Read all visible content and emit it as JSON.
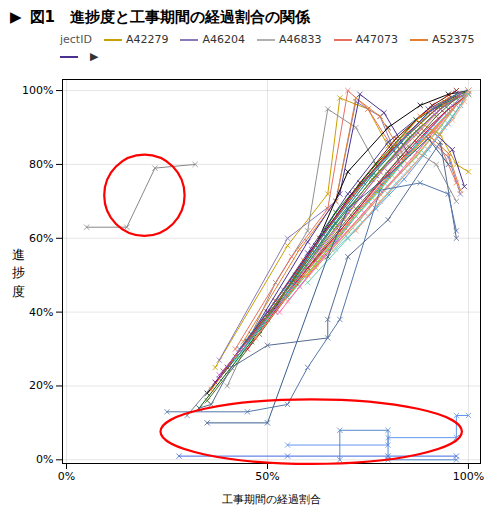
{
  "chart_data": {
    "type": "line",
    "title": "図1　進捗度と工事期間の経過割合の関係",
    "title_mark": "▶",
    "xlabel": "工事期間の経過割合",
    "ylabel": "進\n捗\n度",
    "legend_title": "jectID",
    "legend_items": [
      {
        "label": "A42279",
        "color": "#c8a000"
      },
      {
        "label": "A46204",
        "color": "#8b7ab8"
      },
      {
        "label": "A46833",
        "color": "#b0b0b0"
      },
      {
        "label": "A47073",
        "color": "#e87060"
      },
      {
        "label": "A52375",
        "color": "#e08030"
      },
      {
        "label": null,
        "color": "#4a3090"
      }
    ],
    "legend_end": "▶",
    "xlim": [
      -0.01,
      1.03
    ],
    "ylim": [
      -0.01,
      1.03
    ],
    "xticks": [
      {
        "value": 0,
        "label": "0%"
      },
      {
        "value": 0.5,
        "label": "50%"
      },
      {
        "value": 1.0,
        "label": "100%"
      }
    ],
    "yticks": [
      {
        "value": 0,
        "label": "0%"
      },
      {
        "value": 0.2,
        "label": "20%"
      },
      {
        "value": 0.4,
        "label": "40%"
      },
      {
        "value": 0.6,
        "label": "60%"
      },
      {
        "value": 0.8,
        "label": "80%"
      },
      {
        "value": 1.0,
        "label": "100%"
      }
    ],
    "grid": true,
    "marker": "x",
    "series": [
      {
        "x": [
          0.05,
          0.15,
          0.22,
          0.32
        ],
        "values": [
          0.63,
          0.63,
          0.79,
          0.8
        ],
        "color": "#888888"
      },
      {
        "x": [
          0.37,
          0.55,
          0.65,
          0.68,
          0.75,
          0.8,
          0.87,
          0.93,
          0.97,
          1.0
        ],
        "values": [
          0.25,
          0.58,
          0.72,
          0.98,
          0.95,
          0.85,
          0.92,
          0.88,
          0.8,
          0.78
        ],
        "color": "#c8a000"
      },
      {
        "x": [
          0.38,
          0.55,
          0.67,
          0.72,
          0.78,
          0.83,
          0.9,
          0.95,
          0.98
        ],
        "values": [
          0.27,
          0.6,
          0.7,
          0.97,
          0.93,
          0.8,
          0.87,
          0.82,
          0.72
        ],
        "color": "#8b7ab8"
      },
      {
        "x": [
          0.4,
          0.52,
          0.6,
          0.65,
          0.72,
          0.78,
          0.85,
          0.92,
          0.97
        ],
        "values": [
          0.2,
          0.48,
          0.62,
          0.95,
          0.9,
          0.78,
          0.85,
          0.8,
          0.7
        ],
        "color": "#909090"
      },
      {
        "x": [
          0.42,
          0.56,
          0.65,
          0.7,
          0.75,
          0.82,
          0.88,
          0.93,
          0.97
        ],
        "values": [
          0.3,
          0.55,
          0.68,
          1.0,
          0.95,
          0.83,
          0.9,
          0.85,
          0.75
        ],
        "color": "#e87060"
      },
      {
        "x": [
          0.44,
          0.58,
          0.67,
          0.72,
          0.78,
          0.84,
          0.9,
          0.95,
          0.98
        ],
        "values": [
          0.32,
          0.57,
          0.7,
          0.98,
          0.93,
          0.82,
          0.88,
          0.83,
          0.73
        ],
        "color": "#e08030"
      },
      {
        "x": [
          0.46,
          0.6,
          0.68,
          0.73,
          0.79,
          0.85,
          0.91,
          0.96,
          0.99
        ],
        "values": [
          0.34,
          0.59,
          0.72,
          0.99,
          0.94,
          0.83,
          0.89,
          0.84,
          0.74
        ],
        "color": "#4a3090"
      },
      {
        "x": [
          0.35,
          0.5,
          0.62,
          0.7,
          0.8,
          0.88,
          0.95,
          1.0
        ],
        "values": [
          0.18,
          0.38,
          0.58,
          0.78,
          0.9,
          0.96,
          0.99,
          1.0
        ],
        "color": "#000000"
      },
      {
        "x": [
          0.38,
          0.5,
          0.6,
          0.7,
          0.8,
          0.9,
          0.97,
          1.0
        ],
        "values": [
          0.22,
          0.4,
          0.56,
          0.72,
          0.86,
          0.95,
          0.99,
          1.0
        ],
        "color": "#404090"
      },
      {
        "x": [
          0.4,
          0.52,
          0.63,
          0.73,
          0.82,
          0.91,
          0.97
        ],
        "values": [
          0.25,
          0.43,
          0.6,
          0.75,
          0.87,
          0.96,
          1.0
        ],
        "color": "#8b0000"
      },
      {
        "x": [
          0.33,
          0.46,
          0.57,
          0.67,
          0.77,
          0.87,
          0.94,
          1.0
        ],
        "values": [
          0.14,
          0.32,
          0.5,
          0.67,
          0.8,
          0.92,
          0.97,
          1.0
        ],
        "color": "#006400"
      },
      {
        "x": [
          0.36,
          0.48,
          0.59,
          0.7,
          0.79,
          0.88,
          0.95
        ],
        "values": [
          0.19,
          0.37,
          0.54,
          0.7,
          0.82,
          0.93,
          0.98
        ],
        "color": "#ff6600"
      },
      {
        "x": [
          0.3,
          0.44,
          0.56,
          0.67,
          0.77,
          0.87,
          0.94
        ],
        "values": [
          0.12,
          0.3,
          0.48,
          0.64,
          0.77,
          0.89,
          0.96
        ],
        "color": "#708090"
      },
      {
        "x": [
          0.42,
          0.54,
          0.64,
          0.74,
          0.83,
          0.92,
          0.98
        ],
        "values": [
          0.28,
          0.45,
          0.61,
          0.75,
          0.87,
          0.95,
          0.99
        ],
        "color": "#b8860b"
      },
      {
        "x": [
          0.37,
          0.5,
          0.61,
          0.71,
          0.81,
          0.9,
          0.97
        ],
        "values": [
          0.21,
          0.4,
          0.57,
          0.72,
          0.84,
          0.94,
          0.99
        ],
        "color": "#800080"
      },
      {
        "x": [
          0.45,
          0.56,
          0.66,
          0.76,
          0.85,
          0.93,
          0.99
        ],
        "values": [
          0.32,
          0.48,
          0.63,
          0.77,
          0.88,
          0.96,
          0.99
        ],
        "color": "#008080"
      },
      {
        "x": [
          0.39,
          0.52,
          0.62,
          0.72,
          0.82,
          0.91,
          0.97
        ],
        "values": [
          0.24,
          0.42,
          0.58,
          0.73,
          0.85,
          0.94,
          0.99
        ],
        "color": "#a0522d"
      },
      {
        "x": [
          0.48,
          0.58,
          0.67,
          0.77,
          0.86,
          0.93,
          0.99
        ],
        "values": [
          0.35,
          0.5,
          0.64,
          0.77,
          0.88,
          0.95,
          0.99
        ],
        "color": "#2e8b57"
      },
      {
        "x": [
          0.43,
          0.54,
          0.64,
          0.74,
          0.83,
          0.91,
          0.97
        ],
        "values": [
          0.3,
          0.46,
          0.61,
          0.75,
          0.86,
          0.95,
          0.99
        ],
        "color": "#4682b4"
      },
      {
        "x": [
          0.5,
          0.6,
          0.69,
          0.78,
          0.87,
          0.94,
          0.99
        ],
        "values": [
          0.38,
          0.52,
          0.65,
          0.78,
          0.88,
          0.96,
          0.99
        ],
        "color": "#cd853f"
      },
      {
        "x": [
          0.46,
          0.57,
          0.67,
          0.76,
          0.85,
          0.93,
          0.98
        ],
        "values": [
          0.33,
          0.49,
          0.63,
          0.76,
          0.87,
          0.95,
          0.99
        ],
        "color": "#6b8e23"
      },
      {
        "x": [
          0.52,
          0.62,
          0.71,
          0.8,
          0.88,
          0.95,
          1.0
        ],
        "values": [
          0.4,
          0.54,
          0.66,
          0.78,
          0.88,
          0.95,
          0.99
        ],
        "color": "#b03060"
      },
      {
        "x": [
          0.55,
          0.65,
          0.73,
          0.82,
          0.89,
          0.95,
          1.0
        ],
        "values": [
          0.44,
          0.57,
          0.68,
          0.79,
          0.88,
          0.95,
          0.99
        ],
        "color": "#20b2aa"
      },
      {
        "x": [
          0.58,
          0.67,
          0.75,
          0.83,
          0.9,
          0.96,
          1.0
        ],
        "values": [
          0.47,
          0.59,
          0.7,
          0.8,
          0.89,
          0.96,
          1.0
        ],
        "color": "#9370db"
      },
      {
        "x": [
          0.6,
          0.68,
          0.76,
          0.84,
          0.91,
          0.97,
          1.0
        ],
        "values": [
          0.5,
          0.61,
          0.71,
          0.81,
          0.89,
          0.96,
          1.0
        ],
        "color": "#ff8c00"
      },
      {
        "x": [
          0.35,
          0.48,
          0.6,
          0.72,
          0.83,
          0.92,
          0.97
        ],
        "values": [
          0.16,
          0.34,
          0.52,
          0.68,
          0.82,
          0.93,
          0.98
        ],
        "color": "#556b2f"
      },
      {
        "x": [
          0.62,
          0.7,
          0.78,
          0.86,
          0.92,
          0.97,
          1.0
        ],
        "values": [
          0.52,
          0.62,
          0.72,
          0.81,
          0.89,
          0.96,
          1.0
        ],
        "color": "#daa520"
      },
      {
        "x": [
          0.65,
          0.73,
          0.8,
          0.87,
          0.93,
          0.97,
          1.0
        ],
        "values": [
          0.55,
          0.65,
          0.74,
          0.82,
          0.9,
          0.96,
          1.0
        ],
        "color": "#8fbc8f"
      },
      {
        "x": [
          0.55,
          0.66,
          0.76,
          0.85,
          0.92,
          0.97
        ],
        "values": [
          0.43,
          0.57,
          0.69,
          0.8,
          0.9,
          0.96
        ],
        "color": "#e9967a"
      },
      {
        "x": [
          0.67,
          0.75,
          0.82,
          0.89,
          0.94,
          0.98,
          1.0
        ],
        "values": [
          0.57,
          0.66,
          0.75,
          0.83,
          0.9,
          0.96,
          1.0
        ],
        "color": "#87ceeb"
      },
      {
        "x": [
          0.5,
          0.62,
          0.72,
          0.81,
          0.89,
          0.95,
          1.0
        ],
        "values": [
          0.38,
          0.53,
          0.66,
          0.77,
          0.87,
          0.94,
          0.99
        ],
        "color": "#9acd32"
      },
      {
        "x": [
          0.45,
          0.57,
          0.68,
          0.78,
          0.87,
          0.94,
          1.0
        ],
        "values": [
          0.3,
          0.48,
          0.62,
          0.75,
          0.86,
          0.94,
          0.99
        ],
        "color": "#dc143c"
      },
      {
        "x": [
          0.7,
          0.77,
          0.84,
          0.9,
          0.95,
          0.98,
          1.0
        ],
        "values": [
          0.6,
          0.68,
          0.76,
          0.84,
          0.91,
          0.96,
          1.0
        ],
        "color": "#6495ed"
      },
      {
        "x": [
          0.53,
          0.64,
          0.74,
          0.83,
          0.9,
          0.96,
          1.0
        ],
        "values": [
          0.4,
          0.55,
          0.67,
          0.78,
          0.87,
          0.95,
          0.99
        ],
        "color": "#ff69b4"
      },
      {
        "x": [
          0.42,
          0.55,
          0.67,
          0.78,
          0.87,
          0.95,
          1.0
        ],
        "values": [
          0.27,
          0.45,
          0.6,
          0.73,
          0.85,
          0.94,
          0.99
        ],
        "color": "#40e0d0"
      },
      {
        "x": [
          0.38,
          0.52,
          0.63,
          0.73,
          0.83,
          0.92,
          0.98
        ],
        "values": [
          0.23,
          0.41,
          0.57,
          0.71,
          0.84,
          0.94,
          0.99
        ],
        "color": "#ba55d3"
      },
      {
        "x": [
          0.47,
          0.59,
          0.7,
          0.8,
          0.89,
          0.96,
          1.0
        ],
        "values": [
          0.33,
          0.5,
          0.64,
          0.77,
          0.87,
          0.95,
          0.99
        ],
        "color": "#ff7f50"
      },
      {
        "x": [
          0.6,
          0.7,
          0.8,
          0.89,
          0.96,
          1.0
        ],
        "values": [
          0.48,
          0.6,
          0.72,
          0.83,
          0.93,
          0.99
        ],
        "color": "#66cdaa"
      },
      {
        "x": [
          0.72,
          0.78,
          0.85,
          0.91,
          0.96,
          0.99,
          1.0
        ],
        "values": [
          0.62,
          0.7,
          0.78,
          0.86,
          0.92,
          0.97,
          1.0
        ],
        "color": "#ffa07a"
      },
      {
        "x": [
          0.33,
          0.36,
          0.41,
          0.5,
          0.65,
          0.65,
          0.7,
          0.8,
          0.93,
          0.97
        ],
        "values": [
          0.14,
          0.15,
          0.25,
          0.31,
          0.33,
          0.38,
          0.55,
          0.65,
          0.86,
          0.6
        ],
        "color": "#556b8f"
      },
      {
        "x": [
          0.35,
          0.5,
          0.65,
          0.7,
          0.8,
          0.9,
          0.95
        ],
        "values": [
          0.1,
          0.1,
          0.55,
          0.68,
          0.77,
          0.87,
          0.8
        ],
        "color": "#3a5f8f"
      },
      {
        "x": [
          0.25,
          0.45,
          0.55,
          0.6,
          0.68,
          0.78,
          0.88,
          0.95,
          0.97
        ],
        "values": [
          0.13,
          0.13,
          0.15,
          0.25,
          0.38,
          0.73,
          0.75,
          0.72,
          0.62
        ],
        "color": "#5577aa"
      },
      {
        "x": [
          0.28,
          0.55,
          0.8,
          0.97
        ],
        "values": [
          0.01,
          0.01,
          0.01,
          0.01
        ],
        "color": "#4169e1"
      },
      {
        "x": [
          0.55,
          0.8,
          0.8,
          0.97,
          0.97,
          1.0
        ],
        "values": [
          0.04,
          0.04,
          0.06,
          0.06,
          0.12,
          0.12
        ],
        "color": "#6495ed"
      },
      {
        "x": [
          0.68,
          0.68,
          0.8,
          0.8,
          0.97
        ],
        "values": [
          0.0,
          0.08,
          0.08,
          0.0,
          0.0
        ],
        "color": "#5588cc"
      }
    ],
    "ellipses": [
      {
        "cx": 0.195,
        "cy": 0.715,
        "w": 0.2,
        "h": 0.22,
        "color": "red"
      },
      {
        "cx": 0.61,
        "cy": 0.075,
        "w": 0.75,
        "h": 0.175,
        "color": "red"
      }
    ]
  }
}
